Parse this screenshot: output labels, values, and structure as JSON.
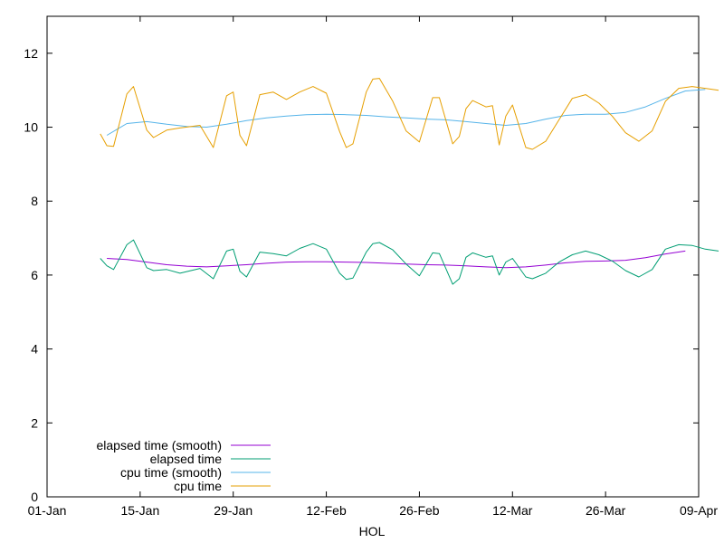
{
  "chart_data": {
    "type": "line",
    "xlabel": "HOL",
    "ylabel": "",
    "title": "",
    "x_ticks": [
      "01-Jan",
      "15-Jan",
      "29-Jan",
      "12-Feb",
      "26-Feb",
      "12-Mar",
      "26-Mar",
      "09-Apr"
    ],
    "x_range": [
      "01-Jan",
      "09-Apr"
    ],
    "ylim": [
      0,
      13
    ],
    "y_ticks": [
      0,
      2,
      4,
      6,
      8,
      10,
      12
    ],
    "grid": false,
    "legend_position": "bottom-left",
    "series": [
      {
        "name": "elapsed time (smooth)",
        "color": "#9400d3",
        "points": [
          [
            "2025-01-10",
            6.45
          ],
          [
            "2025-01-13",
            6.42
          ],
          [
            "2025-01-16",
            6.35
          ],
          [
            "2025-01-19",
            6.28
          ],
          [
            "2025-01-22",
            6.24
          ],
          [
            "2025-01-25",
            6.22
          ],
          [
            "2025-01-28",
            6.25
          ],
          [
            "2025-01-31",
            6.28
          ],
          [
            "2025-02-03",
            6.32
          ],
          [
            "2025-02-06",
            6.35
          ],
          [
            "2025-02-09",
            6.36
          ],
          [
            "2025-02-12",
            6.36
          ],
          [
            "2025-02-15",
            6.35
          ],
          [
            "2025-02-18",
            6.34
          ],
          [
            "2025-02-21",
            6.32
          ],
          [
            "2025-02-24",
            6.3
          ],
          [
            "2025-02-27",
            6.28
          ],
          [
            "2025-03-02",
            6.27
          ],
          [
            "2025-03-05",
            6.25
          ],
          [
            "2025-03-08",
            6.22
          ],
          [
            "2025-03-11",
            6.2
          ],
          [
            "2025-03-14",
            6.22
          ],
          [
            "2025-03-17",
            6.27
          ],
          [
            "2025-03-20",
            6.33
          ],
          [
            "2025-03-23",
            6.37
          ],
          [
            "2025-03-26",
            6.38
          ],
          [
            "2025-03-29",
            6.4
          ],
          [
            "2025-04-01",
            6.47
          ],
          [
            "2025-04-04",
            6.57
          ],
          [
            "2025-04-07",
            6.65
          ]
        ]
      },
      {
        "name": "elapsed time",
        "color": "#009e73",
        "points": [
          [
            "2025-01-09",
            6.45
          ],
          [
            "2025-01-10",
            6.25
          ],
          [
            "2025-01-11",
            6.15
          ],
          [
            "2025-01-13",
            6.82
          ],
          [
            "2025-01-14",
            6.95
          ],
          [
            "2025-01-16",
            6.2
          ],
          [
            "2025-01-17",
            6.12
          ],
          [
            "2025-01-19",
            6.15
          ],
          [
            "2025-01-21",
            6.05
          ],
          [
            "2025-01-24",
            6.18
          ],
          [
            "2025-01-26",
            5.9
          ],
          [
            "2025-01-28",
            6.65
          ],
          [
            "2025-01-29",
            6.7
          ],
          [
            "2025-01-30",
            6.1
          ],
          [
            "2025-01-31",
            5.95
          ],
          [
            "2025-02-02",
            6.62
          ],
          [
            "2025-02-04",
            6.58
          ],
          [
            "2025-02-06",
            6.52
          ],
          [
            "2025-02-08",
            6.72
          ],
          [
            "2025-02-10",
            6.85
          ],
          [
            "2025-02-12",
            6.7
          ],
          [
            "2025-02-14",
            6.05
          ],
          [
            "2025-02-15",
            5.88
          ],
          [
            "2025-02-16",
            5.92
          ],
          [
            "2025-02-18",
            6.62
          ],
          [
            "2025-02-19",
            6.85
          ],
          [
            "2025-02-20",
            6.88
          ],
          [
            "2025-02-22",
            6.68
          ],
          [
            "2025-02-24",
            6.3
          ],
          [
            "2025-02-26",
            5.98
          ],
          [
            "2025-02-28",
            6.6
          ],
          [
            "2025-03-01",
            6.58
          ],
          [
            "2025-03-03",
            5.75
          ],
          [
            "2025-03-04",
            5.9
          ],
          [
            "2025-03-05",
            6.48
          ],
          [
            "2025-03-06",
            6.6
          ],
          [
            "2025-03-08",
            6.48
          ],
          [
            "2025-03-09",
            6.52
          ],
          [
            "2025-03-10",
            6.0
          ],
          [
            "2025-03-11",
            6.35
          ],
          [
            "2025-03-12",
            6.45
          ],
          [
            "2025-03-14",
            5.95
          ],
          [
            "2025-03-15",
            5.9
          ],
          [
            "2025-03-17",
            6.05
          ],
          [
            "2025-03-19",
            6.35
          ],
          [
            "2025-03-21",
            6.55
          ],
          [
            "2025-03-23",
            6.65
          ],
          [
            "2025-03-25",
            6.55
          ],
          [
            "2025-03-27",
            6.38
          ],
          [
            "2025-03-29",
            6.12
          ],
          [
            "2025-03-31",
            5.95
          ],
          [
            "2025-04-02",
            6.15
          ],
          [
            "2025-04-04",
            6.7
          ],
          [
            "2025-04-06",
            6.82
          ],
          [
            "2025-04-08",
            6.8
          ],
          [
            "2025-04-10",
            6.7
          ],
          [
            "2025-04-12",
            6.65
          ]
        ]
      },
      {
        "name": "cpu time (smooth)",
        "color": "#56b4e9",
        "points": [
          [
            "2025-01-10",
            9.78
          ],
          [
            "2025-01-13",
            10.1
          ],
          [
            "2025-01-16",
            10.15
          ],
          [
            "2025-01-19",
            10.08
          ],
          [
            "2025-01-22",
            10.02
          ],
          [
            "2025-01-25",
            10.0
          ],
          [
            "2025-01-28",
            10.08
          ],
          [
            "2025-01-31",
            10.18
          ],
          [
            "2025-02-03",
            10.25
          ],
          [
            "2025-02-06",
            10.3
          ],
          [
            "2025-02-09",
            10.34
          ],
          [
            "2025-02-12",
            10.35
          ],
          [
            "2025-02-15",
            10.34
          ],
          [
            "2025-02-18",
            10.32
          ],
          [
            "2025-02-21",
            10.28
          ],
          [
            "2025-02-24",
            10.25
          ],
          [
            "2025-02-27",
            10.22
          ],
          [
            "2025-03-02",
            10.2
          ],
          [
            "2025-03-05",
            10.15
          ],
          [
            "2025-03-08",
            10.1
          ],
          [
            "2025-03-11",
            10.05
          ],
          [
            "2025-03-14",
            10.1
          ],
          [
            "2025-03-17",
            10.22
          ],
          [
            "2025-03-20",
            10.32
          ],
          [
            "2025-03-23",
            10.35
          ],
          [
            "2025-03-26",
            10.35
          ],
          [
            "2025-03-29",
            10.4
          ],
          [
            "2025-04-01",
            10.55
          ],
          [
            "2025-04-04",
            10.78
          ],
          [
            "2025-04-07",
            10.98
          ],
          [
            "2025-04-10",
            11.02
          ]
        ]
      },
      {
        "name": "cpu time",
        "color": "#e69f00",
        "points": [
          [
            "2025-01-09",
            9.82
          ],
          [
            "2025-01-10",
            9.5
          ],
          [
            "2025-01-11",
            9.48
          ],
          [
            "2025-01-13",
            10.9
          ],
          [
            "2025-01-14",
            11.1
          ],
          [
            "2025-01-16",
            9.92
          ],
          [
            "2025-01-17",
            9.72
          ],
          [
            "2025-01-19",
            9.92
          ],
          [
            "2025-01-21",
            9.98
          ],
          [
            "2025-01-24",
            10.05
          ],
          [
            "2025-01-26",
            9.45
          ],
          [
            "2025-01-28",
            10.85
          ],
          [
            "2025-01-29",
            10.95
          ],
          [
            "2025-01-30",
            9.78
          ],
          [
            "2025-01-31",
            9.5
          ],
          [
            "2025-02-02",
            10.88
          ],
          [
            "2025-02-04",
            10.95
          ],
          [
            "2025-02-06",
            10.75
          ],
          [
            "2025-02-08",
            10.95
          ],
          [
            "2025-02-10",
            11.1
          ],
          [
            "2025-02-12",
            10.92
          ],
          [
            "2025-02-14",
            9.88
          ],
          [
            "2025-02-15",
            9.45
          ],
          [
            "2025-02-16",
            9.55
          ],
          [
            "2025-02-18",
            10.95
          ],
          [
            "2025-02-19",
            11.3
          ],
          [
            "2025-02-20",
            11.32
          ],
          [
            "2025-02-22",
            10.7
          ],
          [
            "2025-02-24",
            9.9
          ],
          [
            "2025-02-26",
            9.6
          ],
          [
            "2025-02-28",
            10.8
          ],
          [
            "2025-03-01",
            10.8
          ],
          [
            "2025-03-03",
            9.55
          ],
          [
            "2025-03-04",
            9.75
          ],
          [
            "2025-03-05",
            10.5
          ],
          [
            "2025-03-06",
            10.72
          ],
          [
            "2025-03-08",
            10.55
          ],
          [
            "2025-03-09",
            10.58
          ],
          [
            "2025-03-10",
            9.52
          ],
          [
            "2025-03-11",
            10.3
          ],
          [
            "2025-03-12",
            10.6
          ],
          [
            "2025-03-14",
            9.45
          ],
          [
            "2025-03-15",
            9.4
          ],
          [
            "2025-03-17",
            9.62
          ],
          [
            "2025-03-19",
            10.2
          ],
          [
            "2025-03-21",
            10.78
          ],
          [
            "2025-03-23",
            10.88
          ],
          [
            "2025-03-25",
            10.65
          ],
          [
            "2025-03-27",
            10.3
          ],
          [
            "2025-03-29",
            9.85
          ],
          [
            "2025-03-31",
            9.62
          ],
          [
            "2025-04-02",
            9.9
          ],
          [
            "2025-04-04",
            10.7
          ],
          [
            "2025-04-06",
            11.05
          ],
          [
            "2025-04-08",
            11.1
          ],
          [
            "2025-04-10",
            11.05
          ],
          [
            "2025-04-12",
            11.0
          ]
        ]
      }
    ]
  }
}
